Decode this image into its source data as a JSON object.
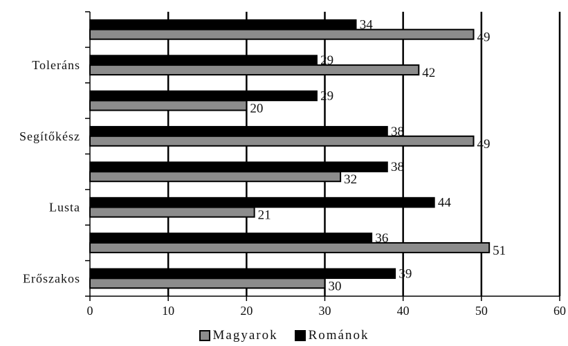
{
  "chart_data": {
    "type": "bar",
    "orientation": "horizontal",
    "categories": [
      "Erőszakos",
      "",
      "Lusta",
      "",
      "Segítőkész",
      "",
      "Toleráns",
      ""
    ],
    "series": [
      {
        "name": "Magyarok",
        "values": [
          30,
          51,
          21,
          32,
          49,
          20,
          42,
          49
        ],
        "color": "#8c8c8c"
      },
      {
        "name": "Románok",
        "values": [
          39,
          36,
          44,
          38,
          38,
          29,
          29,
          34
        ],
        "color": "#000000"
      }
    ],
    "xlim": [
      0,
      60
    ],
    "xticks": [
      "0",
      "10",
      "20",
      "30",
      "40",
      "50",
      "60"
    ],
    "grid": "vertical",
    "legend_position": "bottom"
  },
  "legend": {
    "items": [
      {
        "label": "Magyarok",
        "color": "#8c8c8c"
      },
      {
        "label": "Románok",
        "color": "#000000"
      }
    ]
  }
}
